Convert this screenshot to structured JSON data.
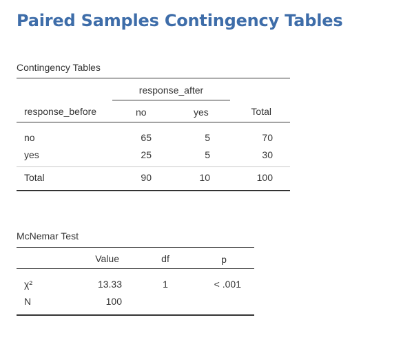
{
  "page": {
    "title": "Paired Samples Contingency Tables"
  },
  "contingency": {
    "caption": "Contingency Tables",
    "spanner": "response_after",
    "row_header": "response_before",
    "col_no": "no",
    "col_yes": "yes",
    "col_total": "Total",
    "rows": [
      {
        "label": "no",
        "no": "65",
        "yes": "5",
        "total": "70"
      },
      {
        "label": "yes",
        "no": "25",
        "yes": "5",
        "total": "30"
      }
    ],
    "total_row": {
      "label": "Total",
      "no": "90",
      "yes": "10",
      "total": "100"
    }
  },
  "mcnemar": {
    "caption": "McNemar Test",
    "col_value": "Value",
    "col_df": "df",
    "col_p": "p",
    "rows": [
      {
        "label": "χ²",
        "value": "13.33",
        "df": "1",
        "p": "< .001"
      },
      {
        "label": "N",
        "value": "100",
        "df": "",
        "p": ""
      }
    ]
  },
  "colors": {
    "title": "#3e6da9",
    "text": "#333333"
  }
}
